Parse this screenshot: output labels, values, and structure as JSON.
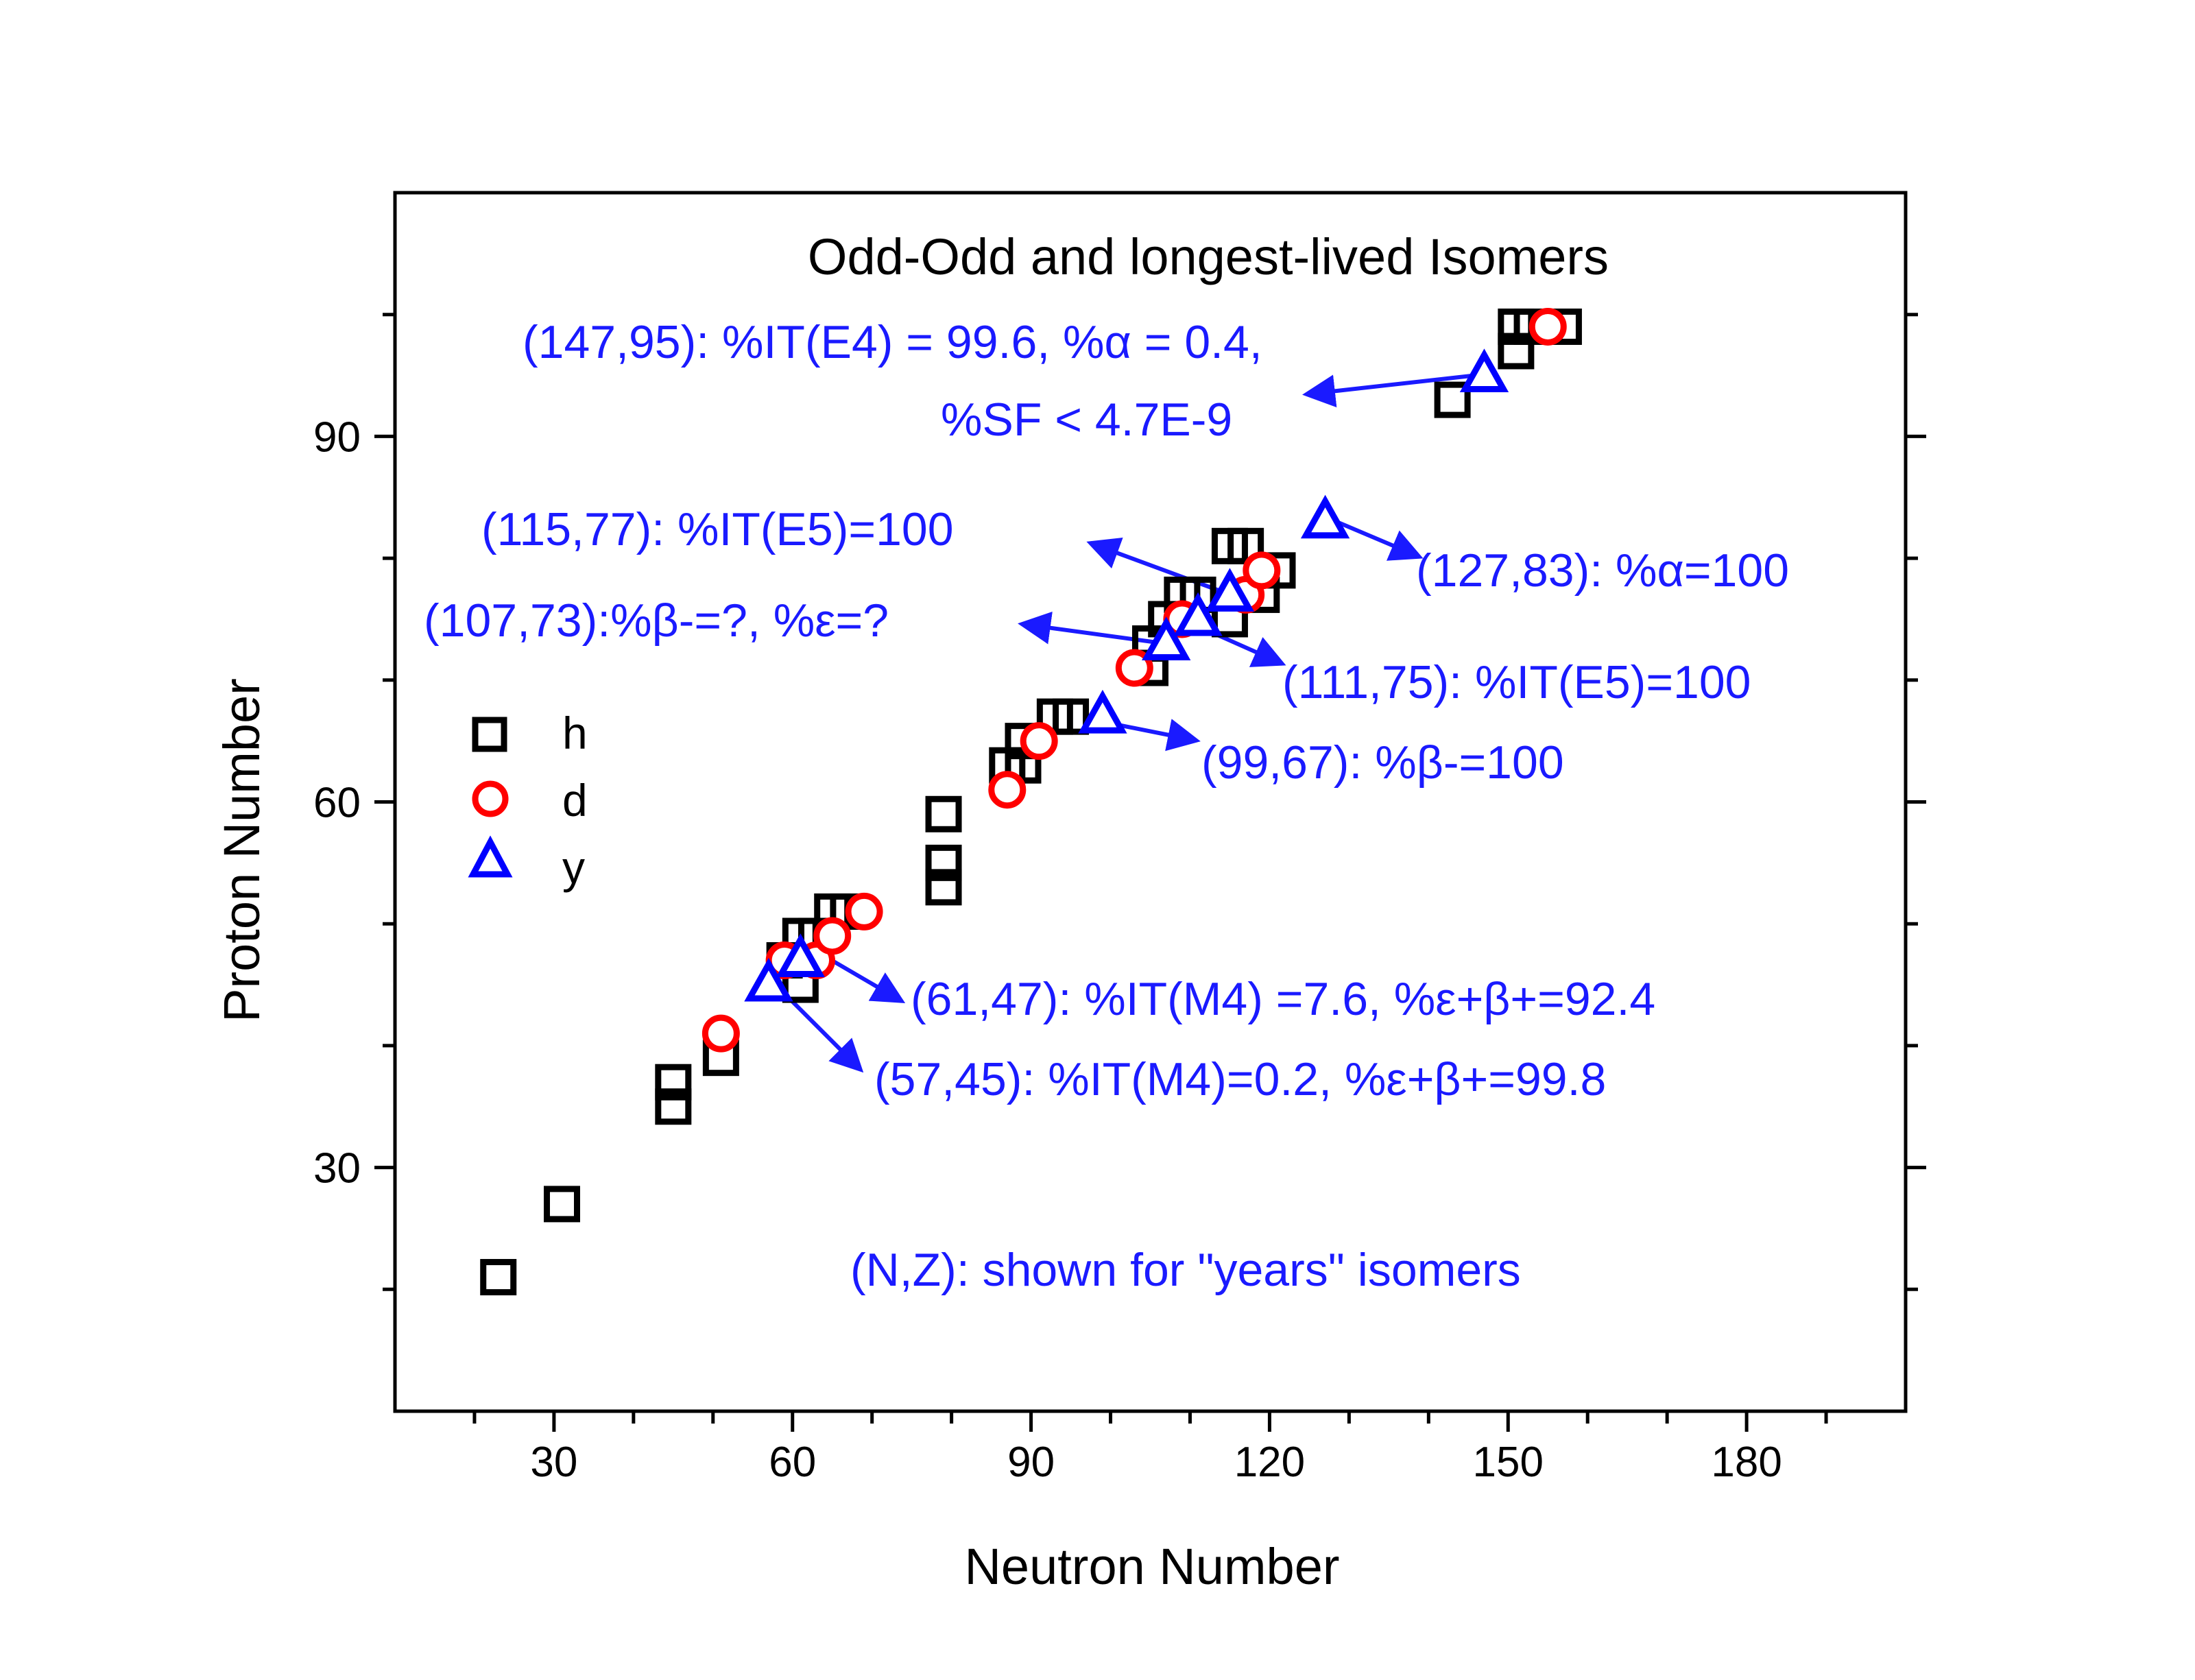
{
  "chart_data": {
    "type": "scatter",
    "title": "Odd-Odd and longest-lived Isomers",
    "xlabel": "Neutron Number",
    "ylabel": "Proton Number",
    "xlim": [
      10,
      200
    ],
    "ylim": [
      10,
      110
    ],
    "xticks": [
      30,
      60,
      90,
      120,
      150,
      180
    ],
    "yticks": [
      30,
      60,
      90
    ],
    "grid": false,
    "legend_position": "left",
    "series": [
      {
        "name": "h",
        "marker": "square",
        "color": "#000000",
        "points": [
          [
            23,
            21
          ],
          [
            31,
            27
          ],
          [
            45,
            35
          ],
          [
            45,
            37
          ],
          [
            51,
            39
          ],
          [
            61,
            45
          ],
          [
            59,
            47
          ],
          [
            61,
            49
          ],
          [
            63,
            49
          ],
          [
            65,
            51
          ],
          [
            67,
            51
          ],
          [
            79,
            53
          ],
          [
            79,
            55
          ],
          [
            79,
            59
          ],
          [
            87,
            63
          ],
          [
            89,
            63
          ],
          [
            89,
            65
          ],
          [
            93,
            67
          ],
          [
            95,
            67
          ],
          [
            105,
            71
          ],
          [
            105,
            73
          ],
          [
            107,
            75
          ],
          [
            109,
            77
          ],
          [
            111,
            77
          ],
          [
            115,
            75
          ],
          [
            115,
            81
          ],
          [
            117,
            81
          ],
          [
            119,
            77
          ],
          [
            121,
            79
          ],
          [
            143,
            93
          ],
          [
            151,
            97
          ],
          [
            151,
            99
          ],
          [
            153,
            99
          ],
          [
            157,
            99
          ]
        ]
      },
      {
        "name": "d",
        "marker": "circle",
        "color": "#ff0000",
        "points": [
          [
            51,
            41
          ],
          [
            59,
            47
          ],
          [
            63,
            47
          ],
          [
            65,
            49
          ],
          [
            69,
            51
          ],
          [
            87,
            61
          ],
          [
            91,
            65
          ],
          [
            103,
            71
          ],
          [
            109,
            75
          ],
          [
            117,
            77
          ],
          [
            119,
            79
          ],
          [
            155,
            99
          ]
        ]
      },
      {
        "name": "y",
        "marker": "triangle",
        "color": "#0000ff",
        "points": [
          [
            57,
            45
          ],
          [
            61,
            47
          ],
          [
            99,
            67
          ],
          [
            107,
            73
          ],
          [
            111,
            75
          ],
          [
            115,
            77
          ],
          [
            127,
            83
          ],
          [
            147,
            95
          ]
        ]
      }
    ],
    "annotations": {
      "a147_1": "(147,95): %IT(E4) = 99.6, %",
      "a147_2": " = 0.4,",
      "a147_3": "%SF < 4.7E-9",
      "a115": "(115,77): %IT(E5)=100",
      "a127_1": "(127,83): %",
      "a127_2": "=100",
      "a107_1": "(107,73):%",
      "a107_2": "-=?, %",
      "a107_3": "=?",
      "a111": "(111,75): %IT(E5)=100",
      "a99_1": "(99,67): %",
      "a99_2": "-=100",
      "a61_1": "(61,47): %IT(M4) =7.6, %",
      "a61_2": "+=92.4",
      "a57_1": "(57,45): %IT(M4)=0.2, %",
      "a57_2": "+=99.8",
      "note": "(N,Z): shown for \"years\" isomers",
      "sym_alpha": "α",
      "sym_beta": "β",
      "sym_eps": "ε",
      "sym_eps_beta": "ε+β"
    }
  }
}
